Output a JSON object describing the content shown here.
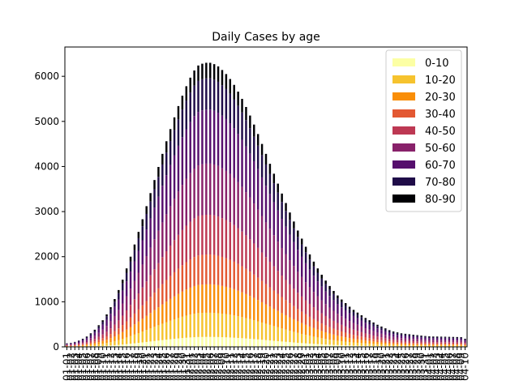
{
  "chart_data": {
    "type": "bar",
    "stacked": true,
    "title": "Daily Cases by age",
    "xlabel": "",
    "ylabel": "",
    "ylim": [
      0,
      6650
    ],
    "yticks": [
      0,
      1000,
      2000,
      3000,
      4000,
      5000,
      6000
    ],
    "grid": false,
    "legend_position": "top-right",
    "x_tick_labels": [
      "01-01",
      "01-02",
      "01-03",
      "01-04",
      "01-05",
      "01-06",
      "01-07",
      "01-08",
      "01-09",
      "01-10",
      "01-11",
      "01-12",
      "01-13",
      "01-14",
      "01-15",
      "01-16",
      "01-17",
      "01-18",
      "01-19",
      "01-20",
      "01-21",
      "01-22",
      "01-23",
      "01-24",
      "01-25",
      "01-26",
      "01-27",
      "01-28",
      "01-29",
      "01-30",
      "01-31",
      "02-01",
      "02-02",
      "02-03",
      "02-04",
      "02-05",
      "02-06",
      "02-07",
      "02-08",
      "02-09",
      "02-10",
      "02-11",
      "02-12",
      "02-13",
      "02-14",
      "02-15",
      "02-16",
      "02-17",
      "02-18",
      "02-19",
      "02-20",
      "02-21",
      "02-22",
      "02-23",
      "02-24",
      "02-25",
      "02-26",
      "02-27",
      "02-28",
      "02-29",
      "03-01",
      "03-02",
      "03-03",
      "03-04",
      "03-05",
      "03-06",
      "03-07",
      "03-08",
      "03-09",
      "03-10",
      "03-11",
      "03-12",
      "03-13",
      "03-14",
      "03-15",
      "03-16",
      "03-17",
      "03-18",
      "03-19",
      "03-20",
      "03-21",
      "03-22",
      "03-23",
      "03-24",
      "03-25",
      "03-26",
      "03-27",
      "03-28",
      "03-29",
      "03-30",
      "03-31",
      "04-01",
      "04-02",
      "04-03",
      "04-04",
      "04-05",
      "04-06",
      "04-07",
      "04-08",
      "04-09",
      "04-10"
    ],
    "totals": [
      80,
      90,
      110,
      140,
      180,
      230,
      300,
      380,
      480,
      590,
      720,
      880,
      1060,
      1260,
      1490,
      1740,
      2000,
      2270,
      2550,
      2830,
      3120,
      3410,
      3700,
      3990,
      4280,
      4560,
      4830,
      5090,
      5340,
      5570,
      5780,
      5970,
      6130,
      6240,
      6280,
      6300,
      6300,
      6270,
      6220,
      6140,
      6050,
      5940,
      5810,
      5660,
      5500,
      5320,
      5130,
      4930,
      4720,
      4500,
      4280,
      4060,
      3840,
      3620,
      3400,
      3190,
      2980,
      2780,
      2580,
      2400,
      2220,
      2050,
      1890,
      1740,
      1600,
      1470,
      1350,
      1240,
      1140,
      1050,
      970,
      890,
      820,
      760,
      700,
      640,
      590,
      540,
      490,
      450,
      410,
      370,
      340,
      320,
      300,
      290,
      280,
      270,
      260,
      250,
      240,
      235,
      230,
      228,
      226,
      224,
      222,
      220,
      218,
      216,
      180
    ],
    "series": [
      {
        "name": "0-10",
        "share": 0.035,
        "color": "#fcffa4"
      },
      {
        "name": "10-20",
        "share": 0.085,
        "color": "#f6c32e"
      },
      {
        "name": "20-30",
        "share": 0.1,
        "color": "#f98e08"
      },
      {
        "name": "30-40",
        "share": 0.105,
        "color": "#e35832"
      },
      {
        "name": "40-50",
        "share": 0.14,
        "color": "#bd3853"
      },
      {
        "name": "50-60",
        "share": 0.18,
        "color": "#88216a"
      },
      {
        "name": "60-70",
        "share": 0.19,
        "color": "#560f6d"
      },
      {
        "name": "70-80",
        "share": 0.11,
        "color": "#1f0c48"
      },
      {
        "name": "80-90",
        "share": 0.055,
        "color": "#000004"
      }
    ]
  }
}
